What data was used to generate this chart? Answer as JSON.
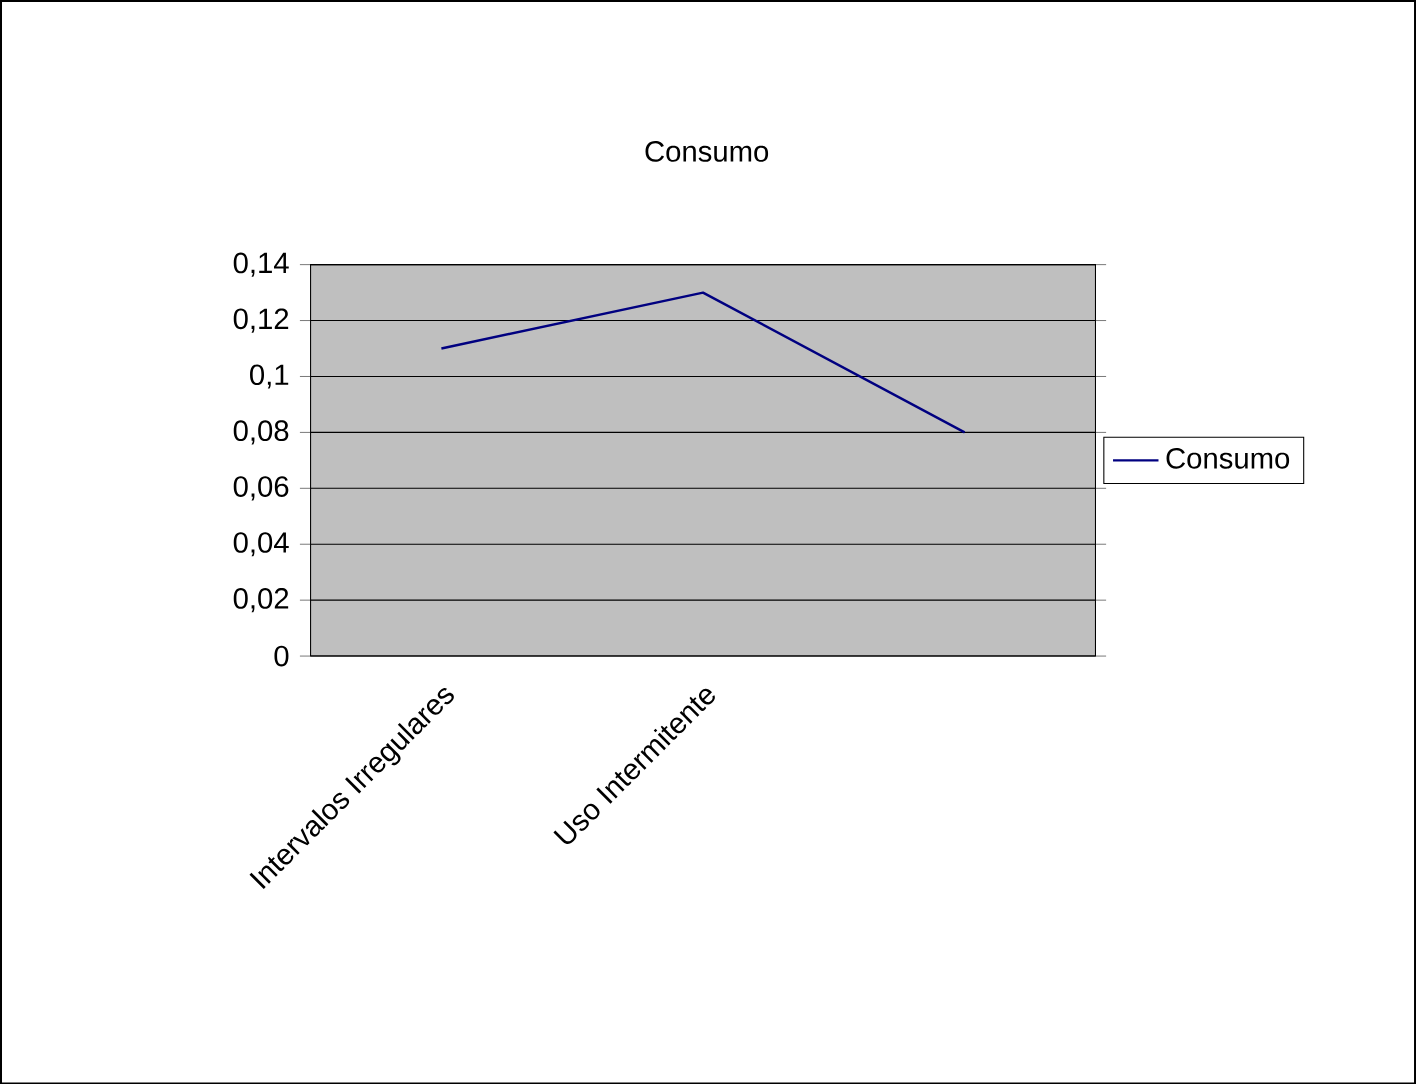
{
  "chart_data": {
    "type": "line",
    "title": "Consumo",
    "categories": [
      "Intervalos Irregulares",
      "Uso Intermitente",
      null
    ],
    "series": [
      {
        "name": "Consumo",
        "color": "#000080",
        "values": [
          0.11,
          0.13,
          0.08
        ]
      }
    ],
    "ylim": [
      0,
      0.14
    ],
    "yticks": [
      0,
      {
        "value": 0.02,
        "label": "0,02"
      },
      {
        "value": 0.04,
        "label": "0,04"
      },
      {
        "value": 0.06,
        "label": "0,06"
      },
      {
        "value": 0.08,
        "label": "0,08"
      },
      {
        "value": 0.1,
        "label": "0,1"
      },
      {
        "value": 0.12,
        "label": "0,12"
      },
      {
        "value": 0.14,
        "label": "0,14"
      }
    ],
    "grid": "y",
    "legend": "right",
    "marker": "none",
    "line_style": "solid"
  }
}
